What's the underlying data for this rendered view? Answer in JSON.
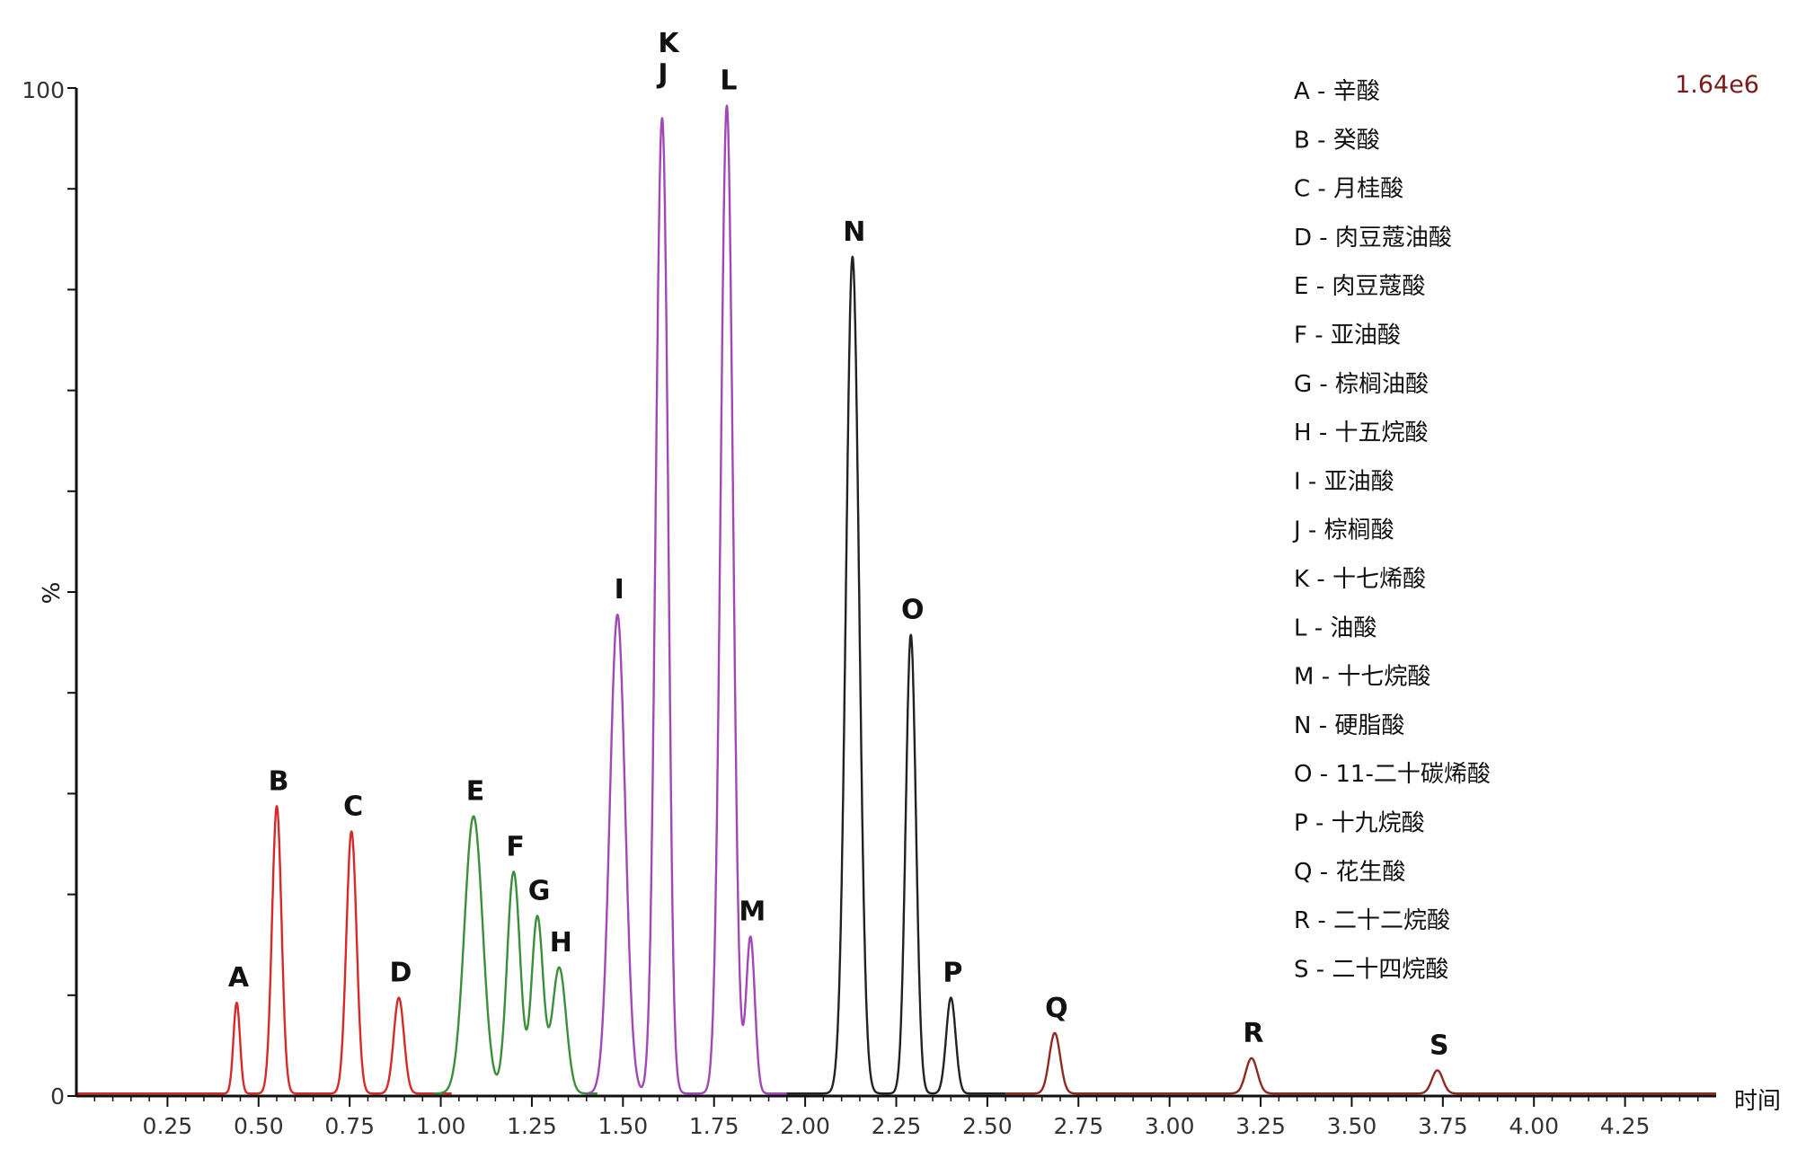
{
  "chart_data": {
    "type": "line",
    "title": "",
    "xlabel": "时间",
    "ylabel": "%",
    "xlim": [
      0,
      4.5
    ],
    "ylim": [
      0,
      100
    ],
    "x_ticks": [
      0.25,
      0.5,
      0.75,
      1.0,
      1.25,
      1.5,
      1.75,
      2.0,
      2.25,
      2.5,
      2.75,
      3.0,
      3.25,
      3.5,
      3.75,
      4.0,
      4.25
    ],
    "x_tick_labels": [
      "0.25",
      "0.50",
      "0.75",
      "1.00",
      "1.25",
      "1.50",
      "1.75",
      "2.00",
      "2.25",
      "2.50",
      "2.75",
      "3.00",
      "3.25",
      "3.50",
      "3.75",
      "4.00",
      "4.25"
    ],
    "y_tick_labels": [
      "0",
      "100"
    ],
    "scale_label": "1.64e6",
    "series": [
      {
        "color": "#d62a2a",
        "range": [
          0.0,
          1.03
        ],
        "peaks": [
          {
            "label": "A",
            "rt": 0.44,
            "height": 9,
            "width": 0.009
          },
          {
            "label": "B",
            "rt": 0.55,
            "height": 28.5,
            "width": 0.013
          },
          {
            "label": "C",
            "rt": 0.755,
            "height": 26,
            "width": 0.014
          },
          {
            "label": "D",
            "rt": 0.885,
            "height": 9.5,
            "width": 0.014
          }
        ]
      },
      {
        "color": "#3a8f3a",
        "range": [
          0.98,
          1.43
        ],
        "peaks": [
          {
            "label": "E",
            "rt": 1.09,
            "height": 27.5,
            "width": 0.025
          },
          {
            "label": "F",
            "rt": 1.2,
            "height": 22,
            "width": 0.018
          },
          {
            "label": "G",
            "rt": 1.265,
            "height": 17.5,
            "width": 0.016
          },
          {
            "label": "H",
            "rt": 1.325,
            "height": 12.5,
            "width": 0.019
          }
        ]
      },
      {
        "color": "#a347b5",
        "range": [
          1.4,
          1.98
        ],
        "peaks": [
          {
            "label": "I",
            "rt": 1.485,
            "height": 47.5,
            "width": 0.021
          },
          {
            "label": "J",
            "rt": 1.605,
            "height": 91,
            "width": 0.016
          },
          {
            "label": "K",
            "rt": 1.62,
            "height": 15,
            "width": 0.01
          },
          {
            "label": "L",
            "rt": 1.785,
            "height": 98,
            "width": 0.017
          },
          {
            "label": "M",
            "rt": 1.85,
            "height": 15.5,
            "width": 0.012
          }
        ]
      },
      {
        "color": "#222222",
        "range": [
          1.95,
          2.55
        ],
        "peaks": [
          {
            "label": "N",
            "rt": 2.13,
            "height": 83,
            "width": 0.018
          },
          {
            "label": "O",
            "rt": 2.29,
            "height": 45.5,
            "width": 0.014
          },
          {
            "label": "P",
            "rt": 2.4,
            "height": 9.5,
            "width": 0.013
          }
        ]
      },
      {
        "color": "#8e2a22",
        "range": [
          2.55,
          4.5
        ],
        "peaks": [
          {
            "label": "Q",
            "rt": 2.685,
            "height": 6,
            "width": 0.015
          },
          {
            "label": "R",
            "rt": 3.225,
            "height": 3.5,
            "width": 0.016
          },
          {
            "label": "S",
            "rt": 3.735,
            "height": 2.3,
            "width": 0.015
          }
        ]
      }
    ],
    "legend_position": "top-right",
    "legend": [
      "A - 辛酸",
      "B - 癸酸",
      "C - 月桂酸",
      "D - 肉豆蔻油酸",
      "E - 肉豆蔻酸",
      "F - 亚油酸",
      "G - 棕榈油酸",
      "H - 十五烷酸",
      "I - 亚油酸",
      "J - 棕榈酸",
      "K - 十七烯酸",
      "L - 油酸",
      "M - 十七烷酸",
      "N - 硬脂酸",
      "O - 11-二十碳烯酸",
      "P - 十九烷酸",
      "Q - 花生酸",
      "R - 二十二烷酸",
      "S - 二十四烷酸"
    ]
  }
}
